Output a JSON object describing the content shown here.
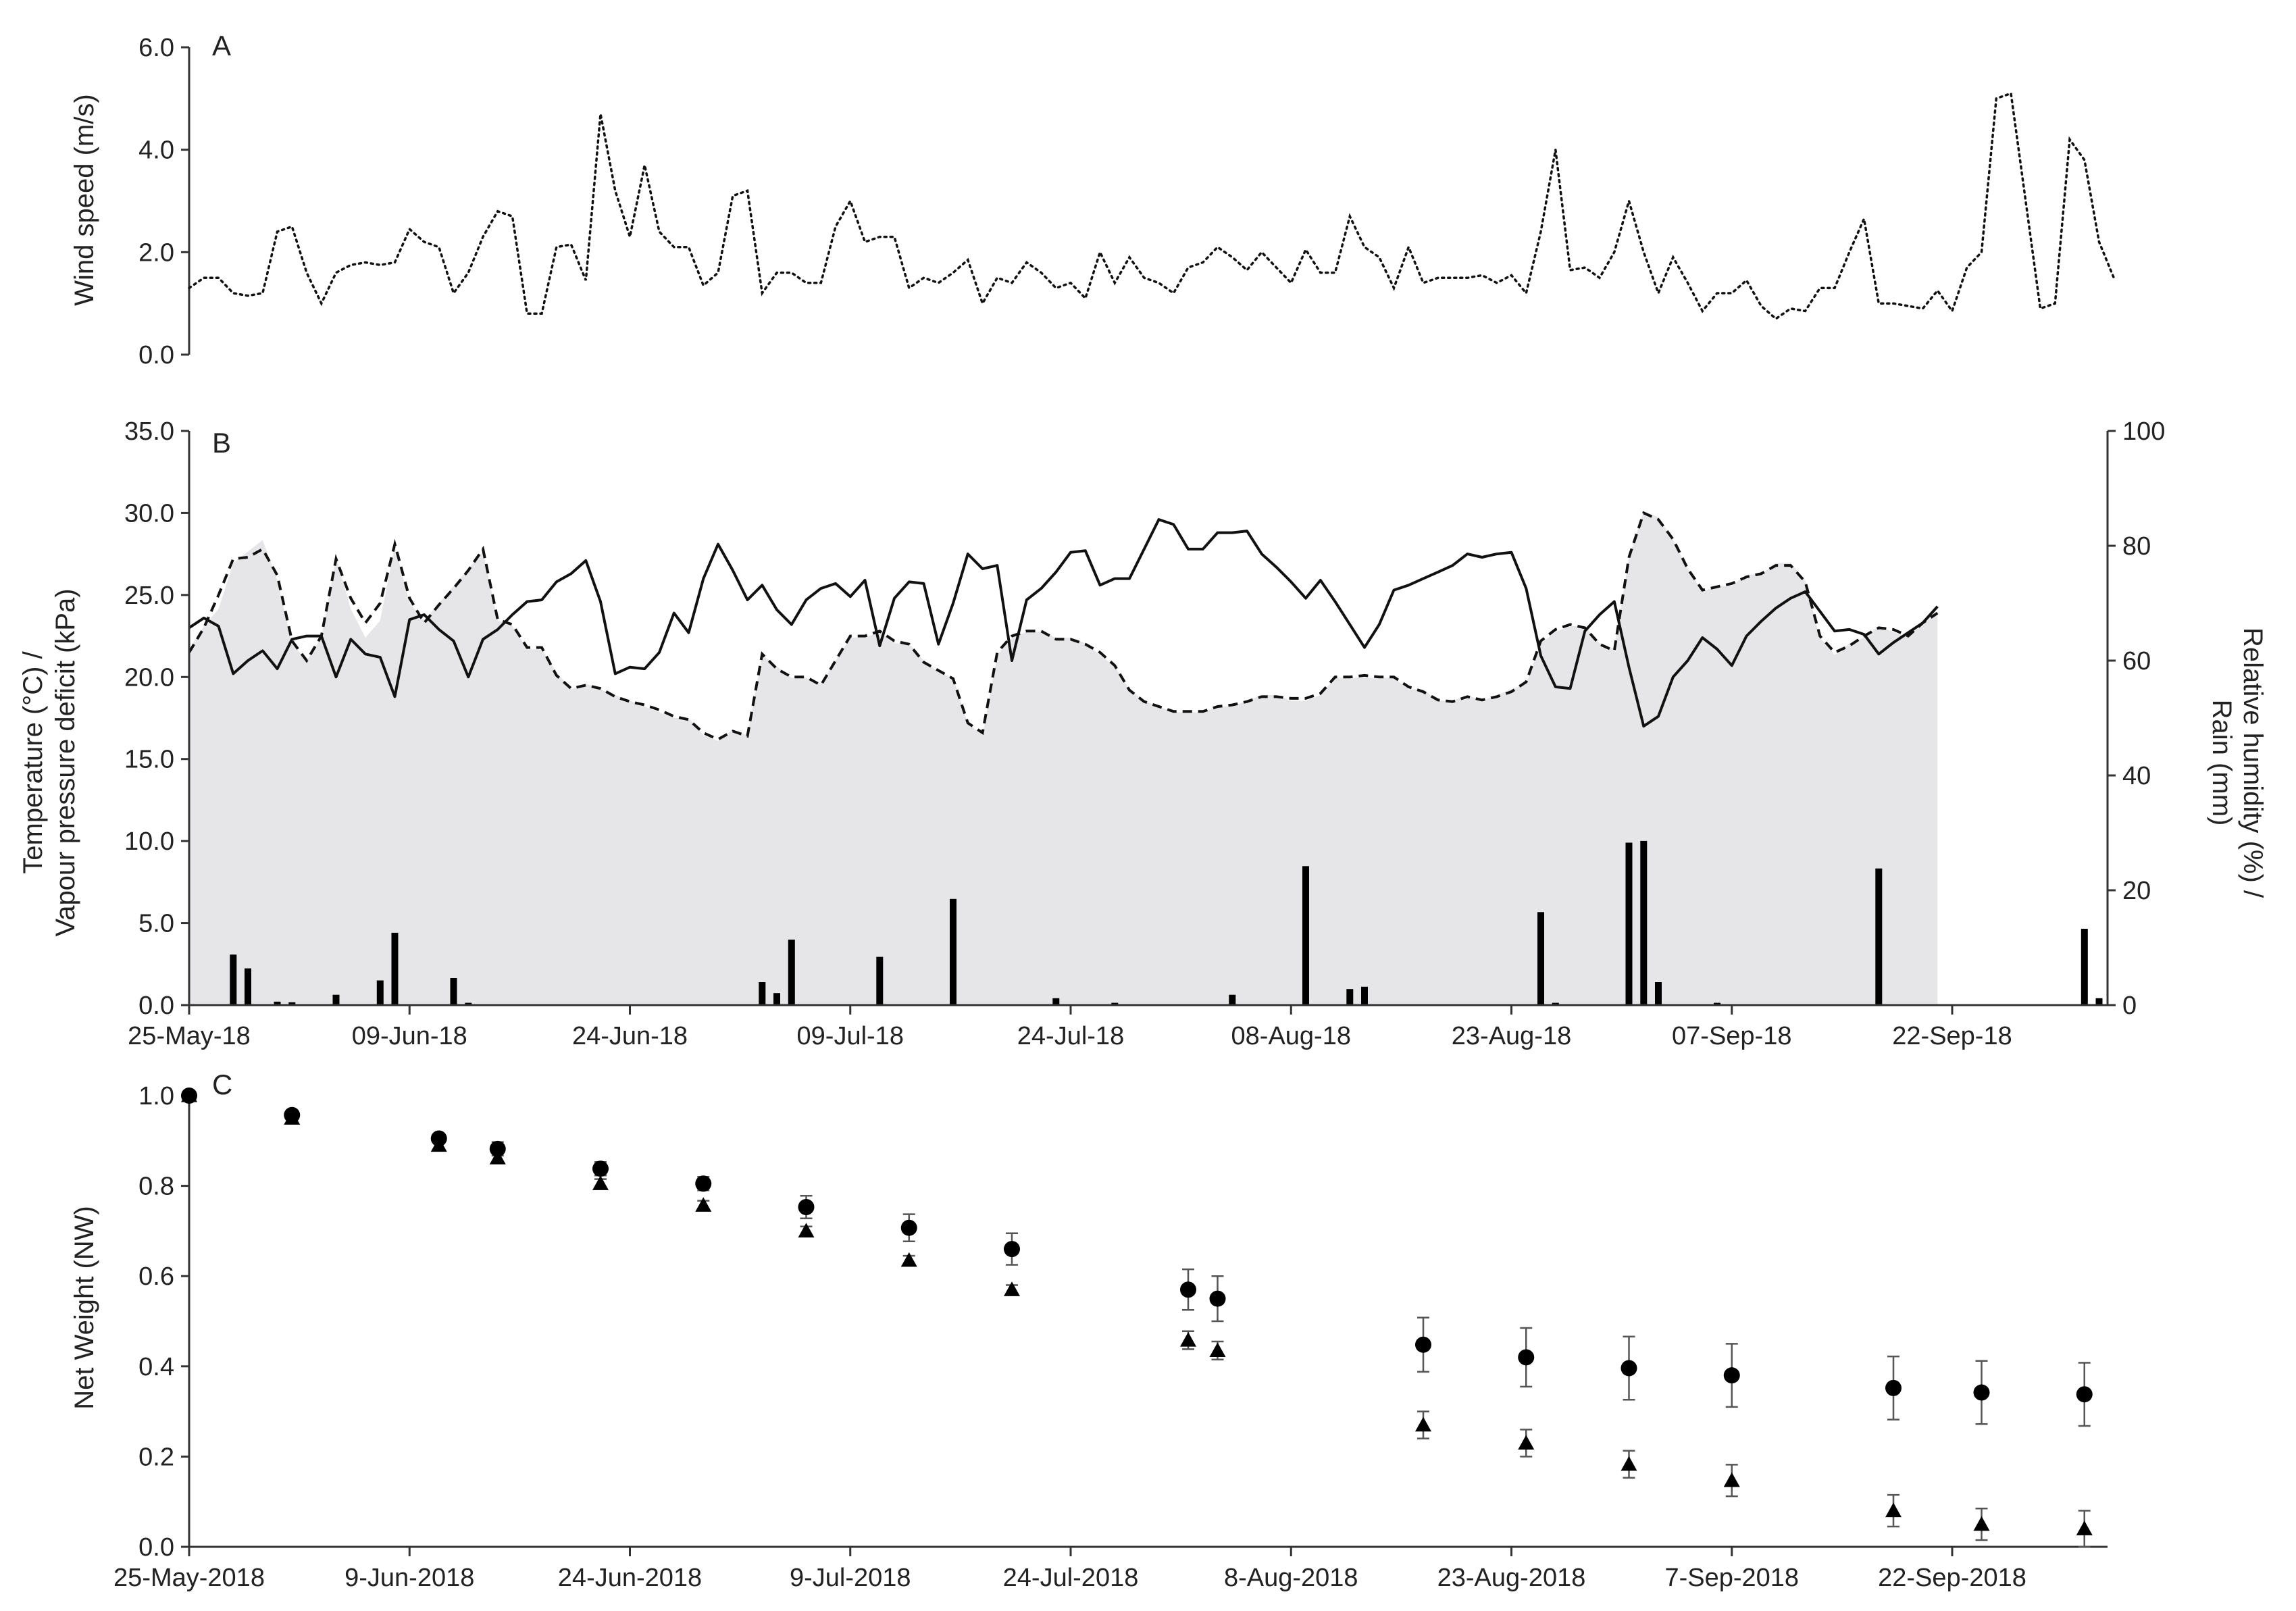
{
  "chart_data": [
    {
      "panel": "A",
      "type": "line",
      "ylabel": "Wind speed (m/s)",
      "ylim": [
        0,
        6
      ],
      "yticks": [
        "0.0",
        "2.0",
        "4.0",
        "6.0"
      ],
      "x_range_days": [
        0,
        127
      ],
      "series": [
        {
          "name": "Wind speed",
          "style": "dotted",
          "values": [
            1.3,
            1.5,
            1.5,
            1.2,
            1.15,
            1.2,
            2.4,
            2.5,
            1.6,
            1.0,
            1.6,
            1.75,
            1.8,
            1.75,
            1.8,
            2.45,
            2.2,
            2.1,
            1.2,
            1.6,
            2.3,
            2.8,
            2.7,
            0.8,
            0.8,
            2.1,
            2.15,
            1.45,
            4.7,
            3.2,
            2.3,
            3.7,
            2.4,
            2.1,
            2.1,
            1.35,
            1.6,
            3.1,
            3.2,
            1.2,
            1.6,
            1.6,
            1.4,
            1.4,
            2.5,
            3.0,
            2.2,
            2.3,
            2.3,
            1.3,
            1.5,
            1.4,
            1.6,
            1.85,
            1.0,
            1.5,
            1.4,
            1.8,
            1.6,
            1.3,
            1.4,
            1.1,
            2.0,
            1.4,
            1.9,
            1.5,
            1.4,
            1.2,
            1.7,
            1.8,
            2.1,
            1.9,
            1.65,
            2.0,
            1.7,
            1.4,
            2.05,
            1.6,
            1.6,
            2.7,
            2.1,
            1.9,
            1.3,
            2.1,
            1.4,
            1.5,
            1.5,
            1.5,
            1.55,
            1.4,
            1.55,
            1.2,
            2.4,
            4.0,
            1.65,
            1.7,
            1.5,
            2.0,
            3.0,
            2.0,
            1.2,
            1.9,
            1.4,
            0.85,
            1.2,
            1.2,
            1.45,
            0.95,
            0.7,
            0.9,
            0.85,
            1.3,
            1.3,
            2.0,
            2.65,
            1.0,
            1.0,
            0.95,
            0.9,
            1.25,
            0.85,
            1.7,
            2.0,
            5.0,
            5.1,
            3.0,
            0.9,
            1.0,
            4.2,
            3.8,
            2.2,
            1.5
          ]
        }
      ]
    },
    {
      "panel": "B",
      "type": "line",
      "ylabel": [
        "Temperature (°C) /",
        "Vapour pressure deficit (kPa)"
      ],
      "ylabel_right": [
        "Relative humidity (%) /",
        "Rain (mm)"
      ],
      "ylim": [
        0,
        35
      ],
      "ylim_right": [
        0,
        100
      ],
      "yticks": [
        "0.0",
        "5.0",
        "10.0",
        "15.0",
        "20.0",
        "25.0",
        "30.0",
        "35.0"
      ],
      "yticks_right": [
        "0",
        "20",
        "40",
        "60",
        "80",
        "100"
      ],
      "xticks": [
        "25-May-18",
        "09-Jun-18",
        "24-Jun-18",
        "09-Jul-18",
        "24-Jul-18",
        "08-Aug-18",
        "23-Aug-18",
        "07-Sep-18",
        "22-Sep-18"
      ],
      "xtick_days": [
        0,
        15,
        30,
        45,
        60,
        75,
        90,
        105,
        120
      ],
      "series": [
        {
          "name": "Temperature",
          "style": "solid",
          "axis": "left",
          "values": [
            23.0,
            23.6,
            23.1,
            20.2,
            21.0,
            21.6,
            20.5,
            22.3,
            22.5,
            22.5,
            20.0,
            22.3,
            21.4,
            21.2,
            18.8,
            23.5,
            23.8,
            22.9,
            22.2,
            20.0,
            22.3,
            22.9,
            23.8,
            24.6,
            24.7,
            25.8,
            26.3,
            27.1,
            24.6,
            20.2,
            20.6,
            20.5,
            21.5,
            23.9,
            22.7,
            26.0,
            28.1,
            26.5,
            24.7,
            25.6,
            24.1,
            23.2,
            24.7,
            25.4,
            25.7,
            24.9,
            25.9,
            21.9,
            24.8,
            25.8,
            25.7,
            22.0,
            24.5,
            27.5,
            26.6,
            26.8,
            21.0,
            24.7,
            25.4,
            26.4,
            27.6,
            27.7,
            25.6,
            26.0,
            26.0,
            27.8,
            29.6,
            29.3,
            27.8,
            27.8,
            28.8,
            28.8,
            28.9,
            27.5,
            26.7,
            25.8,
            24.8,
            25.9,
            24.6,
            23.2,
            21.8,
            23.2,
            25.3,
            25.6,
            26.0,
            26.4,
            26.8,
            27.5,
            27.3,
            27.5,
            27.6,
            25.4,
            21.3,
            19.4,
            19.3,
            22.8,
            23.8,
            24.6,
            20.6,
            17.0,
            17.6,
            20.0,
            21.0,
            22.4,
            21.7,
            20.7,
            22.5,
            23.4,
            24.2,
            24.8,
            25.2,
            24.0,
            22.8,
            22.9,
            22.6,
            21.4,
            22.1,
            22.7,
            23.3,
            24.3
          ]
        },
        {
          "name": "Vapour pressure deficit",
          "style": "dashed",
          "axis": "left",
          "values": [
            21.5,
            23.0,
            25.0,
            27.2,
            27.3,
            27.8,
            26.2,
            22.2,
            21.0,
            22.5,
            27.2,
            24.8,
            23.3,
            24.5,
            28.1,
            24.8,
            23.3,
            24.4,
            25.4,
            26.5,
            27.8,
            23.5,
            23.2,
            21.8,
            21.8,
            20.1,
            19.3,
            19.5,
            19.3,
            18.8,
            18.5,
            18.3,
            18.0,
            17.6,
            17.4,
            16.6,
            16.2,
            16.7,
            16.4,
            21.4,
            20.5,
            20.0,
            20.0,
            19.5,
            21.0,
            22.5,
            22.5,
            22.8,
            22.2,
            22.0,
            20.9,
            20.4,
            19.9,
            17.2,
            16.6,
            21.5,
            22.5,
            22.8,
            22.8,
            22.3,
            22.3,
            22.0,
            21.5,
            20.7,
            19.2,
            18.5,
            18.2,
            17.9,
            17.9,
            17.9,
            18.2,
            18.3,
            18.5,
            18.8,
            18.8,
            18.7,
            18.7,
            19.0,
            20.0,
            20.0,
            20.1,
            20.0,
            20.0,
            19.4,
            19.1,
            18.6,
            18.5,
            18.8,
            18.6,
            18.8,
            19.1,
            19.7,
            22.2,
            22.9,
            23.2,
            23.0,
            22.0,
            21.6,
            27.3,
            30.0,
            29.6,
            28.4,
            26.6,
            25.3,
            25.5,
            25.7,
            26.1,
            26.3,
            26.8,
            26.8,
            25.8,
            22.5,
            21.5,
            21.9,
            22.5,
            23.0,
            22.9,
            22.5,
            23.3,
            23.9
          ]
        },
        {
          "name": "Relative humidity",
          "style": "area",
          "axis": "right",
          "values": [
            62,
            66,
            69,
            77,
            79,
            81,
            74,
            63,
            60,
            64,
            78,
            69,
            64,
            67,
            80,
            70,
            67,
            70,
            73,
            76,
            79,
            67,
            66,
            62,
            62,
            58,
            55,
            56,
            55,
            54,
            53,
            52,
            51,
            50,
            50,
            47,
            46,
            48,
            47,
            61,
            59,
            57,
            57,
            56,
            60,
            64,
            64,
            65,
            63,
            63,
            60,
            58,
            57,
            49,
            47,
            61,
            64,
            65,
            65,
            64,
            64,
            63,
            61,
            59,
            55,
            53,
            52,
            51,
            51,
            51,
            52,
            52,
            53,
            54,
            54,
            53,
            53,
            54,
            57,
            57,
            57,
            57,
            57,
            55,
            55,
            53,
            53,
            54,
            53,
            54,
            55,
            56,
            63,
            65,
            66,
            66,
            63,
            62,
            78,
            86,
            85,
            81,
            76,
            72,
            73,
            73,
            75,
            75,
            77,
            77,
            74,
            64,
            61,
            63,
            64,
            66,
            65,
            64,
            67,
            68
          ]
        },
        {
          "name": "Rain",
          "style": "bar",
          "axis": "right",
          "bars": [
            [
              3,
              8.8
            ],
            [
              4,
              6.4
            ],
            [
              6,
              0.6
            ],
            [
              7,
              0.5
            ],
            [
              10,
              1.8
            ],
            [
              13,
              4.3
            ],
            [
              14,
              12.6
            ],
            [
              18,
              4.7
            ],
            [
              19,
              0.4
            ],
            [
              39,
              4.0
            ],
            [
              40,
              2.1
            ],
            [
              41,
              11.4
            ],
            [
              47,
              8.4
            ],
            [
              52,
              18.5
            ],
            [
              59,
              1.2
            ],
            [
              63,
              0.4
            ],
            [
              71,
              1.8
            ],
            [
              76,
              24.2
            ],
            [
              79,
              2.8
            ],
            [
              80,
              3.2
            ],
            [
              92,
              16.2
            ],
            [
              93,
              0.4
            ],
            [
              98,
              28.3
            ],
            [
              99,
              28.6
            ],
            [
              100,
              4.0
            ],
            [
              104,
              0.4
            ],
            [
              115,
              23.8
            ],
            [
              129,
              13.3
            ],
            [
              130,
              1.2
            ]
          ]
        }
      ]
    },
    {
      "panel": "C",
      "type": "scatter",
      "ylabel": "Net Weight (NW)",
      "ylim": [
        0,
        1
      ],
      "yticks": [
        "0.0",
        "0.2",
        "0.4",
        "0.6",
        "0.8",
        "1.0"
      ],
      "xticks": [
        "25-May-2018",
        "9-Jun-2018",
        "24-Jun-2018",
        "9-Jul-2018",
        "24-Jul-2018",
        "8-Aug-2018",
        "23-Aug-2018",
        "7-Sep-2018",
        "22-Sep-2018"
      ],
      "xtick_days": [
        0,
        15,
        30,
        45,
        60,
        75,
        90,
        105,
        120
      ],
      "series": [
        {
          "name": "Circles",
          "marker": "circle",
          "points": [
            [
              0,
              1.0,
              0
            ],
            [
              7,
              0.957,
              0.01
            ],
            [
              17,
              0.905,
              0.01
            ],
            [
              21,
              0.882,
              0.015
            ],
            [
              28,
              0.838,
              0.015
            ],
            [
              35,
              0.805,
              0.015
            ],
            [
              42,
              0.753,
              0.025
            ],
            [
              49,
              0.707,
              0.03
            ],
            [
              56,
              0.66,
              0.035
            ],
            [
              68,
              0.57,
              0.045
            ],
            [
              70,
              0.55,
              0.05
            ],
            [
              84,
              0.448,
              0.06
            ],
            [
              91,
              0.42,
              0.065
            ],
            [
              98,
              0.396,
              0.07
            ],
            [
              105,
              0.38,
              0.07
            ],
            [
              116,
              0.352,
              0.07
            ],
            [
              122,
              0.342,
              0.07
            ],
            [
              129,
              0.338,
              0.07
            ]
          ]
        },
        {
          "name": "Triangles",
          "marker": "triangle",
          "points": [
            [
              0,
              1.0,
              0
            ],
            [
              7,
              0.95,
              0.01
            ],
            [
              17,
              0.89,
              0.01
            ],
            [
              21,
              0.862,
              0.012
            ],
            [
              28,
              0.805,
              0.01
            ],
            [
              35,
              0.757,
              0.01
            ],
            [
              42,
              0.7,
              0.01
            ],
            [
              49,
              0.635,
              0.01
            ],
            [
              56,
              0.57,
              0.01
            ],
            [
              68,
              0.458,
              0.02
            ],
            [
              70,
              0.435,
              0.02
            ],
            [
              84,
              0.27,
              0.03
            ],
            [
              91,
              0.23,
              0.03
            ],
            [
              98,
              0.183,
              0.03
            ],
            [
              105,
              0.147,
              0.035
            ],
            [
              116,
              0.08,
              0.035
            ],
            [
              122,
              0.05,
              0.035
            ],
            [
              129,
              0.04,
              0.04
            ]
          ]
        }
      ]
    }
  ]
}
